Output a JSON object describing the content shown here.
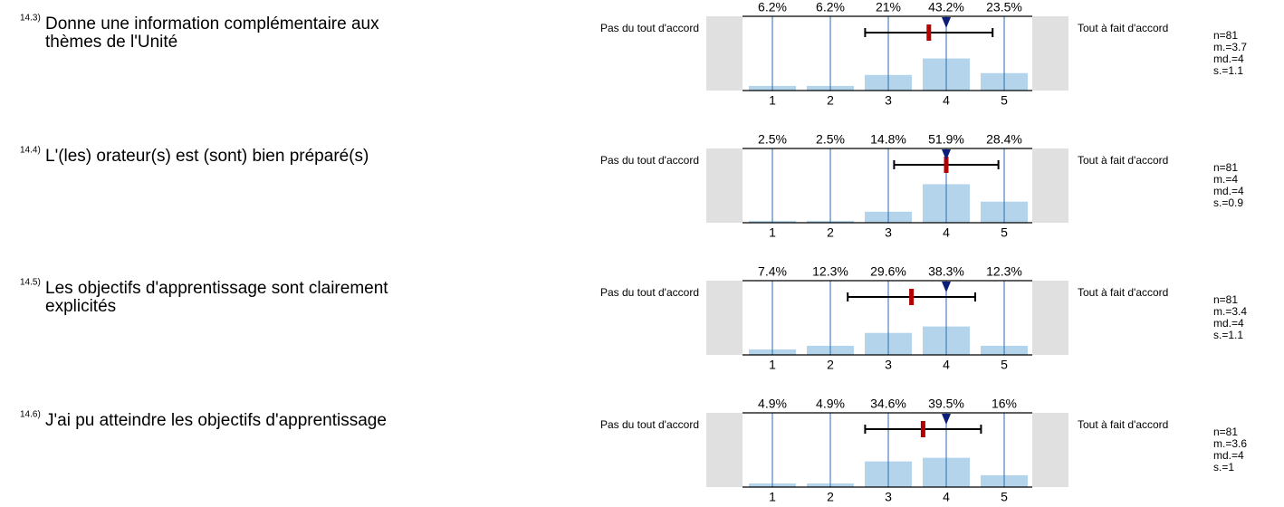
{
  "chart_data": [
    {
      "type": "bar",
      "number": "14.3)",
      "title": [
        "Donne une information complémentaire aux",
        "thèmes de l'Unité"
      ],
      "left_label": "Pas du tout d'accord",
      "right_label": "Tout à fait d'accord",
      "categories": [
        1,
        2,
        3,
        4,
        5
      ],
      "values": [
        6.2,
        6.2,
        21,
        43.2,
        23.5
      ],
      "value_labels": [
        "6.2%",
        "6.2%",
        "21%",
        "43.2%",
        "23.5%"
      ],
      "ylim": [
        0,
        100
      ],
      "color": "#b4d4ec",
      "n": {
        "value": 81,
        "label": "n=81"
      },
      "mean": {
        "value": 3.7,
        "label": "m.=3.7"
      },
      "median": {
        "value": 4,
        "label": "md.=4"
      },
      "sd": {
        "value": 1.1,
        "label": "s.=1.1"
      }
    },
    {
      "type": "bar",
      "number": "14.4)",
      "title": [
        "L'(les) orateur(s) est (sont) bien préparé(s)"
      ],
      "left_label": "Pas du tout d'accord",
      "right_label": "Tout à fait d'accord",
      "categories": [
        1,
        2,
        3,
        4,
        5
      ],
      "values": [
        2.5,
        2.5,
        14.8,
        51.9,
        28.4
      ],
      "value_labels": [
        "2.5%",
        "2.5%",
        "14.8%",
        "51.9%",
        "28.4%"
      ],
      "ylim": [
        0,
        100
      ],
      "color": "#b4d4ec",
      "n": {
        "value": 81,
        "label": "n=81"
      },
      "mean": {
        "value": 4,
        "label": "m.=4"
      },
      "median": {
        "value": 4,
        "label": "md.=4"
      },
      "sd": {
        "value": 0.9,
        "label": "s.=0.9"
      }
    },
    {
      "type": "bar",
      "number": "14.5)",
      "title": [
        "Les objectifs d'apprentissage sont clairement",
        "explicités"
      ],
      "left_label": "Pas du tout d'accord",
      "right_label": "Tout à fait d'accord",
      "categories": [
        1,
        2,
        3,
        4,
        5
      ],
      "values": [
        7.4,
        12.3,
        29.6,
        38.3,
        12.3
      ],
      "value_labels": [
        "7.4%",
        "12.3%",
        "29.6%",
        "38.3%",
        "12.3%"
      ],
      "ylim": [
        0,
        100
      ],
      "color": "#b4d4ec",
      "n": {
        "value": 81,
        "label": "n=81"
      },
      "mean": {
        "value": 3.4,
        "label": "m.=3.4"
      },
      "median": {
        "value": 4,
        "label": "md.=4"
      },
      "sd": {
        "value": 1.1,
        "label": "s.=1.1"
      }
    },
    {
      "type": "bar",
      "number": "14.6)",
      "title": [
        "J'ai pu atteindre les objectifs d'apprentissage"
      ],
      "left_label": "Pas du tout d'accord",
      "right_label": "Tout à fait d'accord",
      "categories": [
        1,
        2,
        3,
        4,
        5
      ],
      "values": [
        4.9,
        4.9,
        34.6,
        39.5,
        16
      ],
      "value_labels": [
        "4.9%",
        "4.9%",
        "34.6%",
        "39.5%",
        "16%"
      ],
      "ylim": [
        0,
        100
      ],
      "color": "#b4d4ec",
      "n": {
        "value": 81,
        "label": "n=81"
      },
      "mean": {
        "value": 3.6,
        "label": "m.=3.6"
      },
      "median": {
        "value": 4,
        "label": "md.=4"
      },
      "sd": {
        "value": 1,
        "label": "s.=1"
      }
    }
  ]
}
